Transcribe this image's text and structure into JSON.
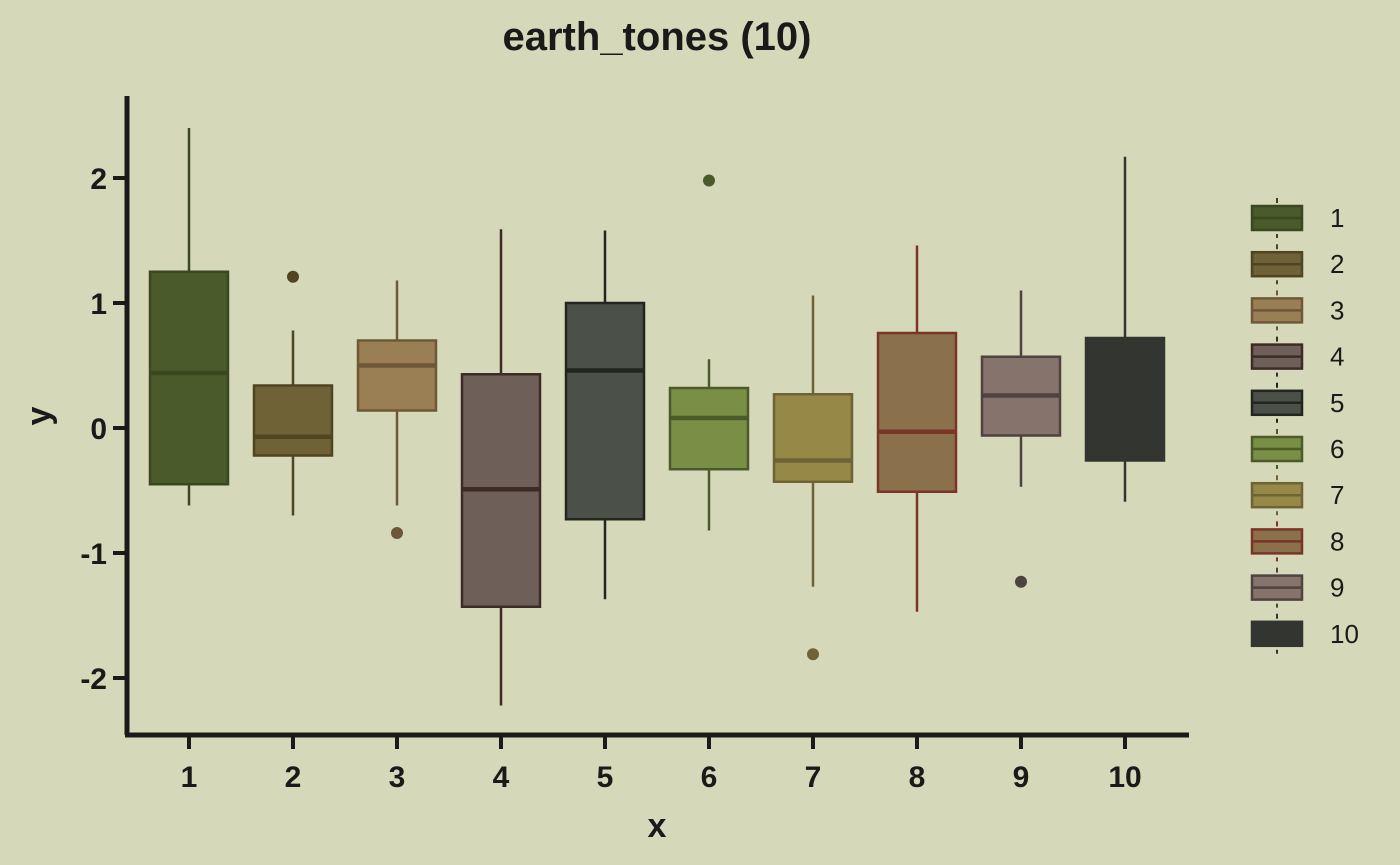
{
  "chart_data": {
    "type": "box",
    "title": "earth_tones (10)",
    "xlabel": "x",
    "ylabel": "y",
    "ylim": [
      -2.45,
      2.65
    ],
    "yticks": [
      -2,
      -1,
      0,
      1,
      2
    ],
    "categories": [
      "1",
      "2",
      "3",
      "4",
      "5",
      "6",
      "7",
      "8",
      "9",
      "10"
    ],
    "grid": false,
    "legend": {
      "position": "right",
      "entries": [
        "1",
        "2",
        "3",
        "4",
        "5",
        "6",
        "7",
        "8",
        "9",
        "10"
      ]
    },
    "boxes": [
      {
        "x": "1",
        "whisker_low": -0.62,
        "q1": -0.45,
        "median": 0.44,
        "q3": 1.25,
        "whisker_high": 2.4,
        "outliers": [],
        "fill": "#4b5a2b",
        "edge": "#3a4720"
      },
      {
        "x": "2",
        "whisker_low": -0.7,
        "q1": -0.22,
        "median": -0.07,
        "q3": 0.34,
        "whisker_high": 0.78,
        "outliers": [
          1.21
        ],
        "fill": "#6f6236",
        "edge": "#4f4520"
      },
      {
        "x": "3",
        "whisker_low": -0.62,
        "q1": 0.14,
        "median": 0.5,
        "q3": 0.7,
        "whisker_high": 1.18,
        "outliers": [
          -0.84
        ],
        "fill": "#9a7f55",
        "edge": "#6e583a"
      },
      {
        "x": "4",
        "whisker_low": -2.22,
        "q1": -1.43,
        "median": -0.49,
        "q3": 0.43,
        "whisker_high": 1.59,
        "outliers": [],
        "fill": "#6f5f59",
        "edge": "#3e2a26"
      },
      {
        "x": "5",
        "whisker_low": -1.37,
        "q1": -0.73,
        "median": 0.46,
        "q3": 1.0,
        "whisker_high": 1.58,
        "outliers": [],
        "fill": "#4b5048",
        "edge": "#23261f"
      },
      {
        "x": "6",
        "whisker_low": -0.82,
        "q1": -0.33,
        "median": 0.08,
        "q3": 0.32,
        "whisker_high": 0.55,
        "outliers": [
          1.98
        ],
        "fill": "#788f45",
        "edge": "#4b5a2b"
      },
      {
        "x": "7",
        "whisker_low": -1.27,
        "q1": -0.43,
        "median": -0.26,
        "q3": 0.27,
        "whisker_high": 1.06,
        "outliers": [
          -1.81
        ],
        "fill": "#968847",
        "edge": "#6f6236"
      },
      {
        "x": "8",
        "whisker_low": -1.47,
        "q1": -0.51,
        "median": -0.03,
        "q3": 0.76,
        "whisker_high": 1.46,
        "outliers": [],
        "fill": "#8a714b",
        "edge": "#7a3527"
      },
      {
        "x": "9",
        "whisker_low": -0.47,
        "q1": -0.06,
        "median": 0.26,
        "q3": 0.57,
        "whisker_high": 1.1,
        "outliers": [
          -1.23
        ],
        "fill": "#86746c",
        "edge": "#4d4340"
      },
      {
        "x": "10",
        "whisker_low": -0.59,
        "q1": -0.26,
        "median": null,
        "q3": 0.72,
        "whisker_high": 2.17,
        "outliers": [],
        "fill": "#323530",
        "edge": "#323530"
      }
    ]
  }
}
